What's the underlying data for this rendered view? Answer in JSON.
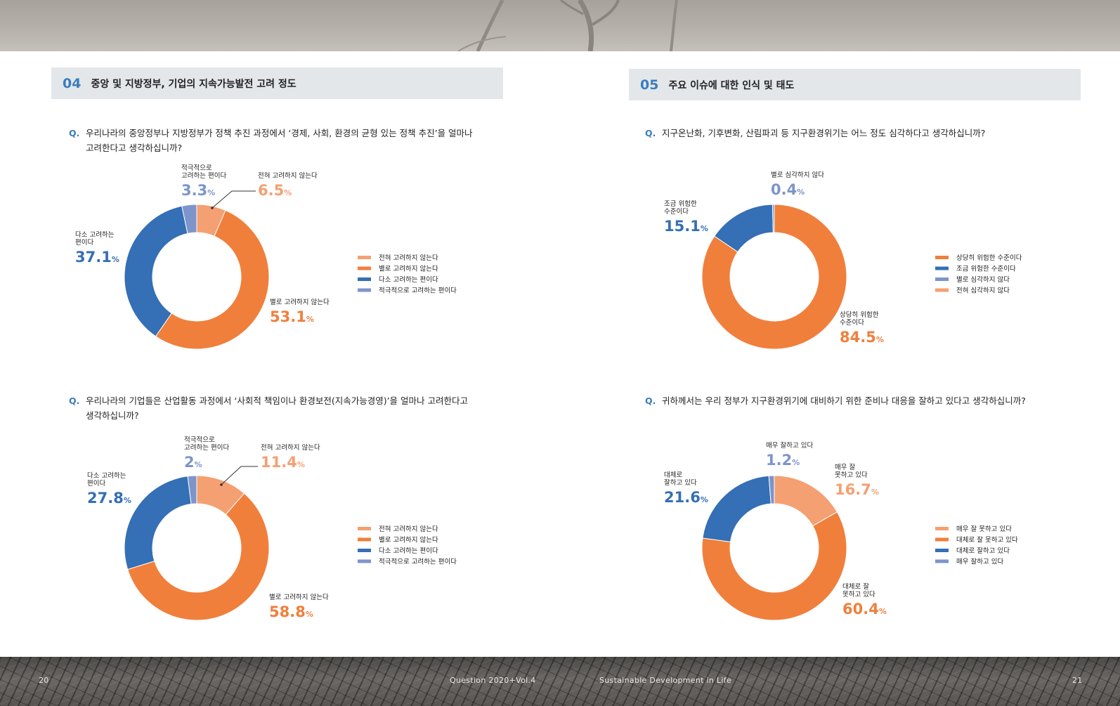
{
  "footer": {
    "page_left": "20",
    "publication": "Question  2020+Vol.4",
    "tagline": "Sustainable Development in Life",
    "page_right": "21"
  },
  "sections": [
    {
      "number": "04",
      "title": "중앙 및 지방정부, 기업의 지속가능발전 고려 정도"
    },
    {
      "number": "05",
      "title": "주요 이슈에 대한 인식 및 태도"
    }
  ],
  "questions": {
    "q1": {
      "mark": "Q.",
      "lines": [
        "우리나라의 중앙정부나 지방정부가 정책 추진 과정에서 ‘경제, 사회, 환경의 균형 있는 정책 추진’을 얼마나",
        "고려한다고 생각하십니까?"
      ]
    },
    "q2": {
      "mark": "Q.",
      "lines": [
        "우리나라의 기업들은 산업활동 과정에서 ‘사회적 책임이나 환경보전(지속가능경영)’을 얼마나 고려한다고",
        "생각하십니까?"
      ]
    },
    "q3": {
      "mark": "Q.",
      "lines": [
        "지구온난화, 기후변화, 산림파괴 등 지구환경위기는 어느 정도 심각하다고 생각하십니까?"
      ]
    },
    "q4": {
      "mark": "Q.",
      "lines": [
        "귀하께서는 우리 정부가 지구환경위기에 대비하기 위한 준비나 대응을 잘하고 있다고 생각하십니까?"
      ]
    }
  },
  "chart_data": [
    {
      "type": "pie",
      "title": "",
      "donut": true,
      "categories": [
        "전혀 고려하지 않는다",
        "별로 고려하지 않는다",
        "다소 고려하는 편이다",
        "적극적으로 고려하는 편이다"
      ],
      "values": [
        6.5,
        53.1,
        37.1,
        3.3
      ],
      "colors": [
        "#f4a072",
        "#f07f3c",
        "#356fb5",
        "#7d95cb"
      ],
      "labels": [
        {
          "lines": [
            "전혀 고려하지 않는다"
          ],
          "value": "6.5"
        },
        {
          "lines": [
            "별로 고려하지 않는다"
          ],
          "value": "53.1"
        },
        {
          "lines": [
            "다소 고려하는",
            "편이다"
          ],
          "value": "37.1"
        },
        {
          "lines": [
            "적극적으로",
            "고려하는 편이다"
          ],
          "value": "3.3"
        }
      ],
      "unit": "%",
      "legend": [
        "전혀 고려하지 않는다",
        "별로 고려하지 않는다",
        "다소 고려하는 편이다",
        "적극적으로 고려하는 편이다"
      ],
      "legend_position": "right"
    },
    {
      "type": "pie",
      "title": "",
      "donut": true,
      "categories": [
        "전혀 고려하지 않는다",
        "별로 고려하지 않는다",
        "다소 고려하는 편이다",
        "적극적으로 고려하는 편이다"
      ],
      "values": [
        11.4,
        58.8,
        27.8,
        2
      ],
      "colors": [
        "#f4a072",
        "#f07f3c",
        "#356fb5",
        "#7d95cb"
      ],
      "labels": [
        {
          "lines": [
            "전혀 고려하지 않는다"
          ],
          "value": "11.4"
        },
        {
          "lines": [
            "별로 고려하지 않는다"
          ],
          "value": "58.8"
        },
        {
          "lines": [
            "다소 고려하는",
            "편이다"
          ],
          "value": "27.8"
        },
        {
          "lines": [
            "적극적으로",
            "고려하는 편이다"
          ],
          "value": "2"
        }
      ],
      "unit": "%",
      "legend": [
        "전혀 고려하지 않는다",
        "별로 고려하지 않는다",
        "다소 고려하는 편이다",
        "적극적으로 고려하는 편이다"
      ],
      "legend_position": "right"
    },
    {
      "type": "pie",
      "title": "",
      "donut": true,
      "categories": [
        "상당히 위험한 수준이다",
        "조금 위험한 수준이다",
        "별로 심각하지 않다",
        "전혀 심각하지 않다"
      ],
      "values": [
        84.5,
        15.1,
        0.4,
        0
      ],
      "colors": [
        "#f07f3c",
        "#356fb5",
        "#7d95cb",
        "#f4a072"
      ],
      "labels": [
        {
          "lines": [
            "상당히 위험한",
            "수준이다"
          ],
          "value": "84.5"
        },
        {
          "lines": [
            "조금 위험한",
            "수준이다"
          ],
          "value": "15.1"
        },
        {
          "lines": [
            "별로 심각하지 않다"
          ],
          "value": "0.4"
        },
        null
      ],
      "unit": "%",
      "legend": [
        "상당히 위험한 수준이다",
        "조금 위험한 수준이다",
        "별로 심각하지 않다",
        "전혀 심각하지 않다"
      ],
      "legend_position": "right"
    },
    {
      "type": "pie",
      "title": "",
      "donut": true,
      "categories": [
        "매우 잘 못하고 있다",
        "대체로 잘 못하고 있다",
        "대체로 잘하고 있다",
        "매우 잘하고 있다"
      ],
      "values": [
        16.7,
        60.4,
        21.6,
        1.2
      ],
      "colors": [
        "#f4a072",
        "#f07f3c",
        "#356fb5",
        "#7d95cb"
      ],
      "labels": [
        {
          "lines": [
            "매우 잘",
            "못하고 있다"
          ],
          "value": "16.7"
        },
        {
          "lines": [
            "대체로 잘",
            "못하고 있다"
          ],
          "value": "60.4"
        },
        {
          "lines": [
            "대체로",
            "잘하고 있다"
          ],
          "value": "21.6"
        },
        {
          "lines": [
            "매우 잘하고 있다"
          ],
          "value": "1.2"
        }
      ],
      "unit": "%",
      "legend": [
        "매우 잘 못하고 있다",
        "대체로 잘 못하고 있다",
        "대체로 잘하고 있다",
        "매우 잘하고 있다"
      ],
      "legend_position": "right"
    }
  ]
}
